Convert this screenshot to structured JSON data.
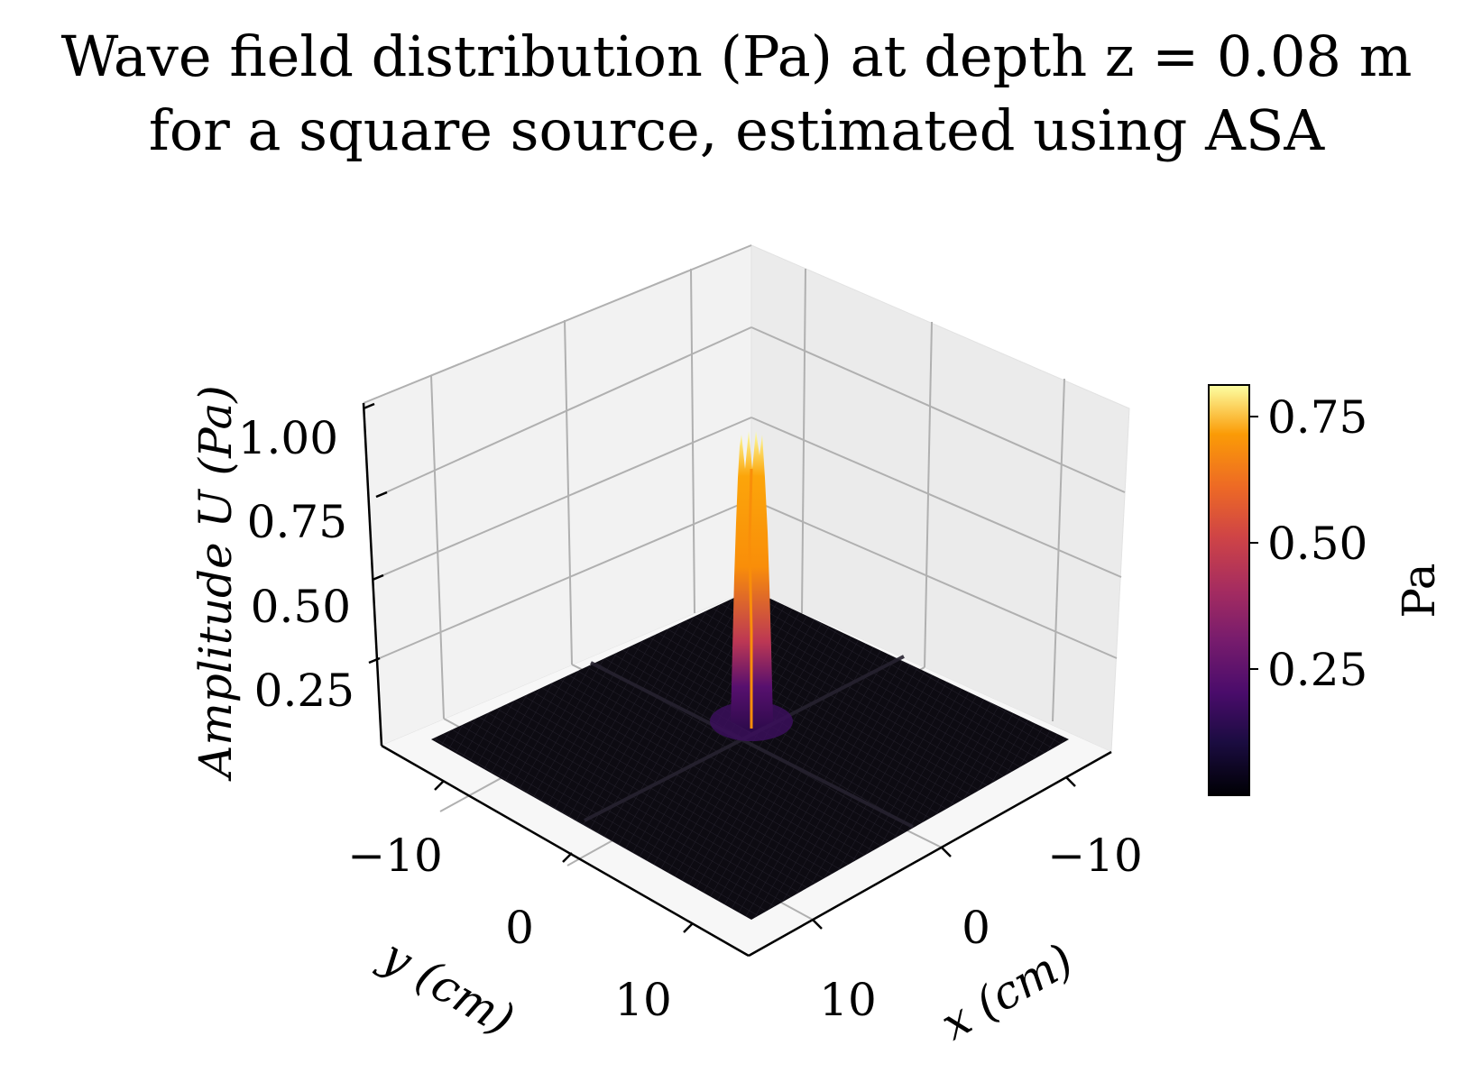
{
  "title_line1": "Wave field distribution (Pa) at depth z = 0.08 m",
  "title_line2": "for a square source, estimated using ASA",
  "chart_data": {
    "type": "surface3d",
    "title": "Wave field distribution (Pa) at depth z = 0.08 m for a square source, estimated using ASA",
    "xlabel": "x (cm)",
    "ylabel": "y (cm)",
    "zlabel": "Amplitude U (Pa)",
    "x_ticks": [
      "−10",
      "0",
      "10"
    ],
    "y_ticks": [
      "−10",
      "0",
      "10"
    ],
    "z_ticks": [
      "0.25",
      "0.50",
      "0.75",
      "1.00"
    ],
    "xlim": [
      -15,
      15
    ],
    "ylim": [
      -15,
      15
    ],
    "zlim": [
      0,
      1.0
    ],
    "peak": {
      "x": 0,
      "y": 0,
      "z": 0.8
    },
    "colormap": "inferno",
    "colorbar": {
      "label": "Pa",
      "ticks": [
        "0.25",
        "0.50",
        "0.75"
      ],
      "range": [
        0,
        0.8
      ]
    },
    "colors": {
      "surface_floor": "#0d0b12",
      "peak_high": "#fcffa4",
      "peak_mid": "#f98e09",
      "peak_low": "#bc3754",
      "peak_base": "#57106e"
    }
  }
}
